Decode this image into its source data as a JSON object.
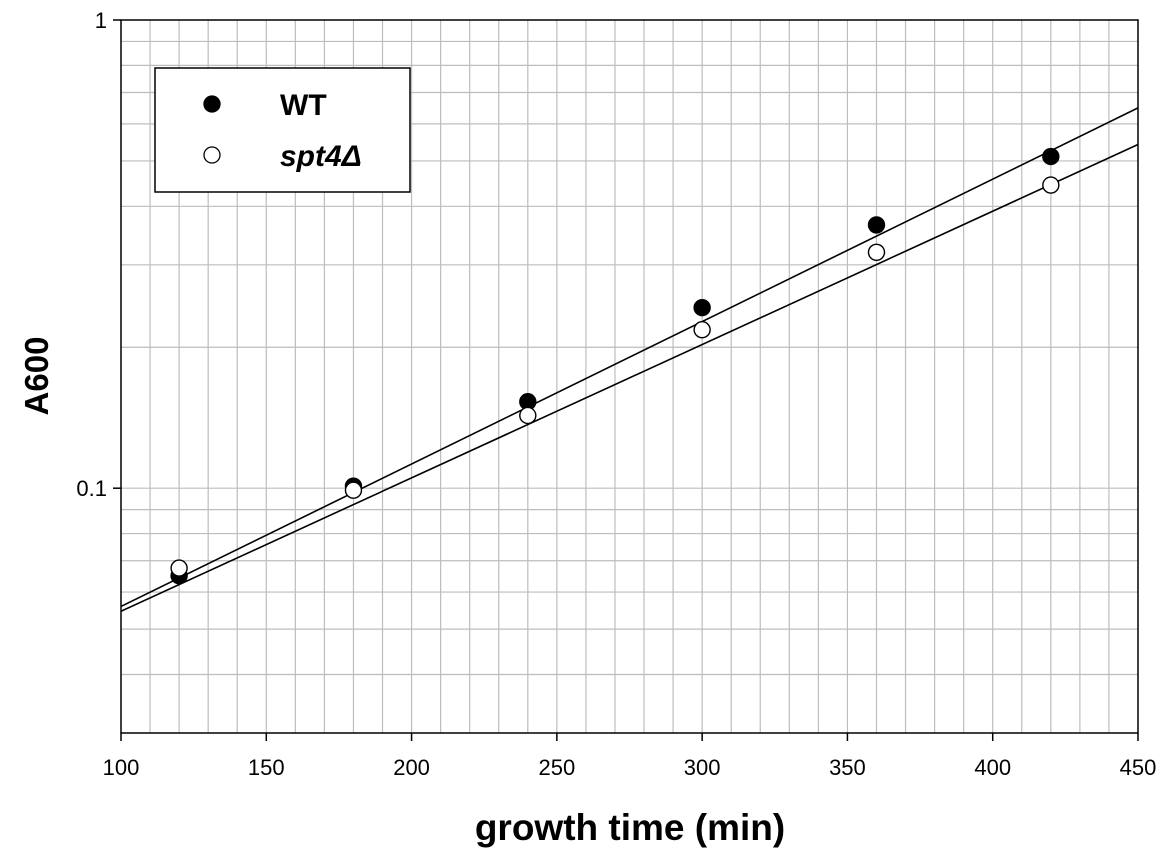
{
  "chart_data": {
    "type": "scatter",
    "title": "",
    "xlabel": "growth time (min)",
    "ylabel": "A600",
    "xlim": [
      100,
      450
    ],
    "ylim": [
      0.03,
      1
    ],
    "y_scale": "log",
    "grid": true,
    "x_ticks": [
      "100",
      "150",
      "200",
      "250",
      "300",
      "350",
      "400",
      "450"
    ],
    "y_ticks": [
      "0.1",
      "1"
    ],
    "legend_position": "top-left",
    "series": [
      {
        "name": "WT",
        "marker": "filled-circle",
        "x": [
          120,
          180,
          240,
          300,
          360,
          420
        ],
        "y": [
          0.065,
          0.101,
          0.153,
          0.243,
          0.365,
          0.511
        ],
        "fit": {
          "x": [
            100,
            450
          ],
          "y": [
            0.0559,
            0.649
          ]
        }
      },
      {
        "name": "spt4Δ",
        "marker": "open-circle",
        "x": [
          120,
          180,
          240,
          300,
          360,
          420
        ],
        "y": [
          0.0675,
          0.099,
          0.143,
          0.218,
          0.319,
          0.444
        ],
        "fit": {
          "x": [
            100,
            450
          ],
          "y": [
            0.0546,
            0.542
          ]
        }
      }
    ]
  }
}
